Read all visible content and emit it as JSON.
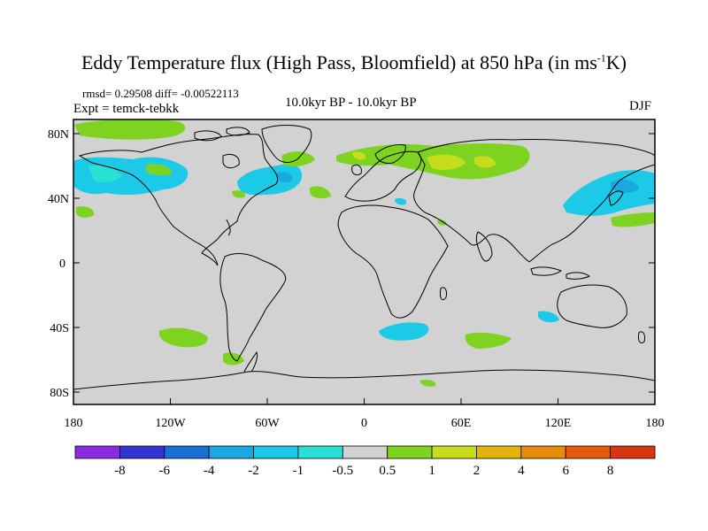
{
  "title": {
    "main": "Eddy Temperature flux (High Pass, Bloomfield) at 850 hPa (in ms",
    "sup": "-1",
    "end": "K)"
  },
  "stats": "rmsd= 0.29508 diff= -0.00522113",
  "expt": "Expt = temck-tebkk",
  "center_label": "10.0kyr BP - 10.0kyr BP",
  "season": "DJF",
  "lat_labels": [
    "80N",
    "40N",
    "0",
    "40S",
    "80S"
  ],
  "lon_labels": [
    "180",
    "120W",
    "60W",
    "0",
    "60E",
    "120E",
    "180"
  ],
  "colorbar": {
    "labels": [
      "-8",
      "-6",
      "-4",
      "-2",
      "-1",
      "-0.5",
      "0.5",
      "1",
      "2",
      "4",
      "6",
      "8"
    ],
    "colors": [
      "#8a2be2",
      "#3434d6",
      "#1d6fd8",
      "#1aa8e0",
      "#1cc9e6",
      "#28e0d4",
      "#d2d2d2",
      "#7ed320",
      "#c8dc1e",
      "#e3b40f",
      "#e88a0c",
      "#e35a0a",
      "#d93512"
    ]
  },
  "colors": {
    "background": "#d2d2d2",
    "coast": "#000000"
  }
}
